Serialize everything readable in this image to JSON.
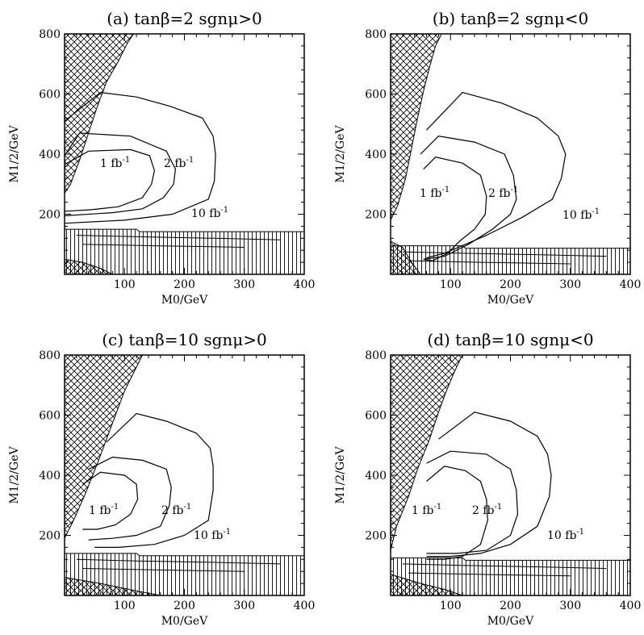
{
  "chart_data": [
    {
      "type": "line",
      "title": "(a) tanβ=2 sgnμ>0",
      "xlabel": "M0/GeV",
      "ylabel": "M1/2/GeV",
      "xlim": [
        0,
        400
      ],
      "ylim": [
        0,
        800
      ],
      "xticks": [
        "100",
        "200",
        "300",
        "400"
      ],
      "yticks": [
        "200",
        "400",
        "600",
        "800"
      ],
      "series": [
        {
          "name": "1 fb-1",
          "x": [
            0,
            40,
            110,
            142,
            150,
            145,
            130,
            90,
            45,
            0
          ],
          "y": [
            365,
            410,
            415,
            395,
            345,
            300,
            255,
            225,
            215,
            210
          ]
        },
        {
          "name": "2 fb-1",
          "x": [
            0,
            25,
            110,
            170,
            185,
            182,
            165,
            130,
            80,
            0
          ],
          "y": [
            395,
            470,
            460,
            410,
            350,
            300,
            255,
            218,
            205,
            195
          ]
        },
        {
          "name": "10 fb-1",
          "x": [
            0,
            60,
            120,
            175,
            230,
            248,
            252,
            250,
            240,
            180,
            100,
            0
          ],
          "y": [
            510,
            605,
            590,
            560,
            520,
            460,
            400,
            310,
            250,
            200,
            180,
            170
          ]
        }
      ],
      "annotations": [
        {
          "text": "1 fb",
          "sup": "-1"
        },
        {
          "text": "2 fb",
          "sup": "-1"
        },
        {
          "text": "10 fb",
          "sup": "-1"
        }
      ],
      "excluded_regions": [
        "upper-left cross-hatched",
        "bottom vertical-hatched band",
        "bottom-left cross-hatched"
      ]
    },
    {
      "type": "line",
      "title": "(b) tanβ=2 sgnμ<0",
      "xlabel": "M0/GeV",
      "ylabel": "M1/2/GeV",
      "xlim": [
        0,
        400
      ],
      "ylim": [
        0,
        800
      ],
      "xticks": [
        "100",
        "200",
        "300",
        "400"
      ],
      "yticks": [
        "200",
        "400",
        "600",
        "800"
      ],
      "series": [
        {
          "name": "1 fb-1",
          "x": [
            55,
            75,
            120,
            150,
            160,
            158,
            140,
            115,
            95,
            70,
            55
          ],
          "y": [
            350,
            390,
            370,
            330,
            260,
            200,
            150,
            110,
            70,
            45,
            50
          ]
        },
        {
          "name": "2 fb-1",
          "x": [
            50,
            80,
            140,
            190,
            205,
            210,
            200,
            170,
            130,
            90,
            55
          ],
          "y": [
            400,
            460,
            440,
            400,
            330,
            250,
            200,
            150,
            100,
            60,
            50
          ]
        },
        {
          "name": "10 fb-1",
          "x": [
            60,
            120,
            185,
            245,
            280,
            292,
            285,
            270,
            220,
            160,
            90,
            60
          ],
          "y": [
            480,
            605,
            570,
            520,
            460,
            400,
            320,
            250,
            190,
            130,
            70,
            55
          ]
        }
      ],
      "annotations": [
        {
          "text": "1 fb",
          "sup": "-1"
        },
        {
          "text": "2 fb",
          "sup": "-1"
        },
        {
          "text": "10 fb",
          "sup": "-1"
        }
      ],
      "excluded_regions": [
        "upper-left cross-hatched",
        "bottom vertical-hatched band",
        "bottom-left cross-hatched"
      ]
    },
    {
      "type": "line",
      "title": "(c) tanβ=10 sgnμ>0",
      "xlabel": "M0/GeV",
      "ylabel": "M1/2/GeV",
      "xlim": [
        0,
        400
      ],
      "ylim": [
        0,
        800
      ],
      "xticks": [
        "100",
        "200",
        "300",
        "400"
      ],
      "yticks": [
        "200",
        "400",
        "600",
        "800"
      ],
      "series": [
        {
          "name": "1 fb-1",
          "x": [
            30,
            60,
            100,
            120,
            122,
            110,
            85,
            55,
            30
          ],
          "y": [
            370,
            410,
            400,
            370,
            320,
            270,
            235,
            220,
            220
          ]
        },
        {
          "name": "2 fb-1",
          "x": [
            40,
            80,
            130,
            170,
            178,
            175,
            160,
            120,
            80,
            40
          ],
          "y": [
            420,
            460,
            450,
            420,
            360,
            300,
            230,
            200,
            190,
            185
          ]
        },
        {
          "name": "10 fb-1",
          "x": [
            70,
            120,
            170,
            220,
            243,
            248,
            248,
            240,
            200,
            150,
            90,
            50
          ],
          "y": [
            510,
            605,
            580,
            540,
            490,
            430,
            350,
            250,
            200,
            170,
            160,
            160
          ]
        }
      ],
      "annotations": [
        {
          "text": "1 fb",
          "sup": "-1"
        },
        {
          "text": "2 fb",
          "sup": "-1"
        },
        {
          "text": "10 fb",
          "sup": "-1"
        }
      ],
      "excluded_regions": [
        "upper-left cross-hatched",
        "bottom vertical-hatched band",
        "bottom-left cross-hatched"
      ]
    },
    {
      "type": "line",
      "title": "(d) tanβ=10 sgnμ<0",
      "xlabel": "M0/GeV",
      "ylabel": "M1/2/GeV",
      "xlim": [
        0,
        400
      ],
      "ylim": [
        0,
        800
      ],
      "xticks": [
        "100",
        "200",
        "300",
        "400"
      ],
      "yticks": [
        "200",
        "400",
        "600",
        "800"
      ],
      "series": [
        {
          "name": "1 fb-1",
          "x": [
            60,
            90,
            125,
            150,
            160,
            162,
            150,
            120,
            90,
            60
          ],
          "y": [
            380,
            430,
            415,
            380,
            320,
            250,
            170,
            130,
            120,
            120
          ]
        },
        {
          "name": "2 fb-1",
          "x": [
            60,
            100,
            160,
            200,
            210,
            212,
            200,
            160,
            110,
            60
          ],
          "y": [
            440,
            480,
            470,
            420,
            350,
            270,
            200,
            150,
            140,
            140
          ]
        },
        {
          "name": "10 fb-1",
          "x": [
            80,
            140,
            200,
            245,
            262,
            268,
            265,
            245,
            200,
            150,
            100,
            60
          ],
          "y": [
            520,
            610,
            580,
            530,
            470,
            400,
            330,
            230,
            170,
            140,
            130,
            130
          ]
        }
      ],
      "annotations": [
        {
          "text": "1 fb",
          "sup": "-1"
        },
        {
          "text": "2 fb",
          "sup": "-1"
        },
        {
          "text": "10 fb",
          "sup": "-1"
        }
      ],
      "excluded_regions": [
        "upper-left cross-hatched",
        "bottom vertical-hatched band",
        "bottom-left cross-hatched"
      ]
    }
  ]
}
